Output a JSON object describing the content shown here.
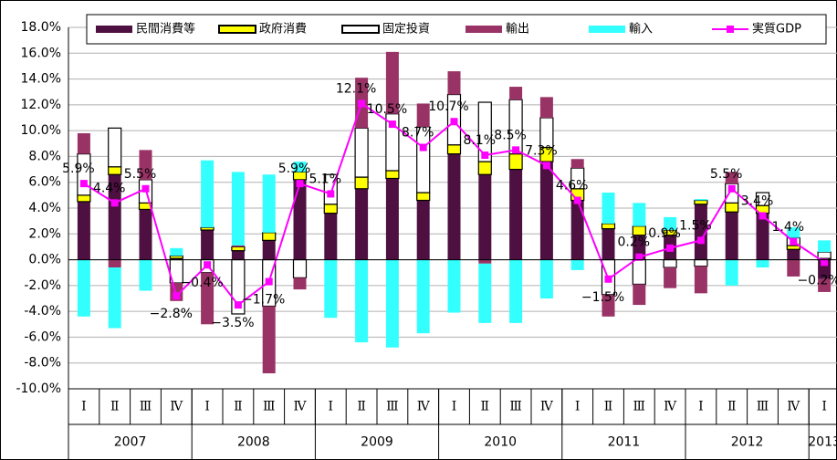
{
  "chart_data": {
    "type": "bar",
    "categories": [
      "Ⅰ",
      "Ⅱ",
      "Ⅲ",
      "Ⅳ",
      "Ⅰ",
      "Ⅱ",
      "Ⅲ",
      "Ⅳ",
      "Ⅰ",
      "Ⅱ",
      "Ⅲ",
      "Ⅳ",
      "Ⅰ",
      "Ⅱ",
      "Ⅲ",
      "Ⅳ",
      "Ⅰ",
      "Ⅱ",
      "Ⅲ",
      "Ⅳ",
      "Ⅰ",
      "Ⅱ",
      "Ⅲ",
      "Ⅳ",
      "Ⅰ"
    ],
    "years": [
      "2007",
      "2008",
      "2009",
      "2010",
      "2011",
      "2012",
      "2013"
    ],
    "ylim": [
      -10,
      18
    ],
    "yticks": [
      {
        "value": -10,
        "label": "-10.0%"
      },
      {
        "value": -8,
        "label": "-8.0%"
      },
      {
        "value": -6,
        "label": "-6.0%"
      },
      {
        "value": -4,
        "label": "-4.0%"
      },
      {
        "value": -2,
        "label": "-2.0%"
      },
      {
        "value": 0,
        "label": "0.0%"
      },
      {
        "value": 2,
        "label": "2.0%"
      },
      {
        "value": 4,
        "label": "4.0%"
      },
      {
        "value": 6,
        "label": "6.0%"
      },
      {
        "value": 8,
        "label": "8.0%"
      },
      {
        "value": 10,
        "label": "10.0%"
      },
      {
        "value": 12,
        "label": "12.0%"
      },
      {
        "value": 14,
        "label": "14.0%"
      },
      {
        "value": 16,
        "label": "16.0%"
      },
      {
        "value": 18,
        "label": "18.0%"
      }
    ],
    "grid": true,
    "legend": "top",
    "series": [
      {
        "name": "民間消費等",
        "type": "bar",
        "color": "#4d1040",
        "values": [
          4.5,
          6.6,
          3.9,
          0.1,
          2.3,
          0.7,
          1.5,
          6.2,
          3.6,
          5.5,
          6.3,
          4.6,
          8.2,
          6.6,
          7.0,
          7.6,
          4.6,
          2.4,
          1.9,
          1.9,
          4.3,
          3.7,
          3.6,
          0.8,
          -1.5
        ]
      },
      {
        "name": "政府消費",
        "type": "bar",
        "color": "#ffff00",
        "values": [
          0.5,
          0.6,
          0.5,
          0.2,
          0.2,
          0.3,
          0.6,
          0.6,
          0.7,
          0.9,
          0.6,
          0.6,
          0.7,
          1.0,
          1.2,
          1.1,
          0.9,
          0.4,
          0.7,
          0.4,
          0.3,
          0.7,
          0.6,
          0.3,
          0.1
        ]
      },
      {
        "name": "固定投資",
        "type": "bar",
        "color": "#ffffff",
        "values": [
          3.2,
          3.0,
          1.8,
          -1.8,
          -1.0,
          -4.2,
          -3.6,
          -1.4,
          2.3,
          3.8,
          4.4,
          5.1,
          3.9,
          4.6,
          4.2,
          2.3,
          1.6,
          -2.7,
          -1.9,
          -0.6,
          -0.5,
          1.5,
          1.0,
          0.6,
          0.5
        ]
      },
      {
        "name": "輸出",
        "type": "bar",
        "color": "#993366",
        "values": [
          1.6,
          -0.6,
          2.3,
          -1.4,
          -4.0,
          0.1,
          -5.2,
          -0.9,
          0,
          3.9,
          4.8,
          1.8,
          1.8,
          -0.3,
          1.0,
          1.6,
          0.7,
          -1.7,
          -1.6,
          -1.6,
          -2.1,
          0.9,
          0,
          -1.3,
          -1.0
        ]
      },
      {
        "name": "輸入",
        "type": "bar",
        "color": "#33ffff",
        "values": [
          -4.4,
          -4.7,
          -2.4,
          0.6,
          5.2,
          5.7,
          4.5,
          0.8,
          -4.5,
          -6.4,
          -6.8,
          -5.7,
          -4.1,
          -4.6,
          -4.9,
          -3.0,
          -0.8,
          2.4,
          1.8,
          1.0,
          0.1,
          -2.0,
          -0.6,
          0.8,
          0.9
        ]
      },
      {
        "name": "実質GDP",
        "type": "line",
        "color": "#ff00ff",
        "values": [
          5.9,
          4.4,
          5.5,
          -2.8,
          -0.4,
          -3.5,
          -1.7,
          5.9,
          5.1,
          12.1,
          10.5,
          8.7,
          10.7,
          8.1,
          8.5,
          7.3,
          4.6,
          -1.5,
          0.2,
          0.9,
          1.5,
          5.5,
          3.4,
          1.4,
          -0.2
        ],
        "value_labels": [
          "5.9%",
          "4.4%",
          "5.5%",
          "−2.8%",
          "−0.4%",
          "−3.5%",
          "−1.7%",
          "5.9%",
          "5.1%",
          "12.1%",
          "10.5%",
          "8.7%",
          "10.7%",
          "8.1%",
          "8.5%",
          "7.3%",
          "4.6%",
          "−1.5%",
          "0.2%",
          "0.9%",
          "1.5%",
          "5.5%",
          "3.4%",
          "1.4%",
          "−0.2%"
        ]
      }
    ]
  }
}
